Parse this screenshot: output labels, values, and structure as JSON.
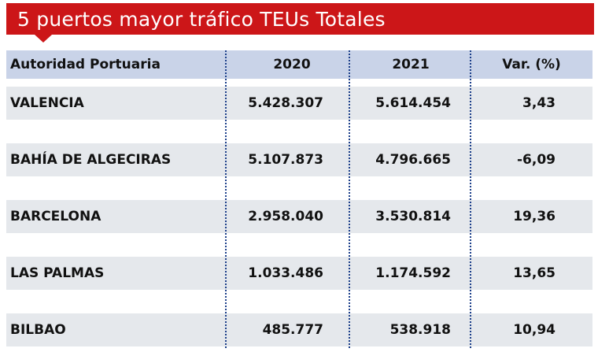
{
  "title": "5 puertos mayor tráfico TEUs Totales",
  "colors": {
    "title_bg": "#cc1618",
    "header_bg": "#c9d3e8",
    "row_bg": "#e5e8ec",
    "separator": "#1c3f8a"
  },
  "table": {
    "headers": {
      "name": "Autoridad Portuaria",
      "y2020": "2020",
      "y2021": "2021",
      "var": "Var. (%)"
    },
    "rows": [
      {
        "name": "VALENCIA",
        "y2020": "5.428.307",
        "y2021": "5.614.454",
        "var": "3,43"
      },
      {
        "name": "BAHÍA DE ALGECIRAS",
        "y2020": "5.107.873",
        "y2021": "4.796.665",
        "var": "-6,09"
      },
      {
        "name": "BARCELONA",
        "y2020": "2.958.040",
        "y2021": "3.530.814",
        "var": "19,36"
      },
      {
        "name": "LAS PALMAS",
        "y2020": "1.033.486",
        "y2021": "1.174.592",
        "var": "13,65"
      },
      {
        "name": "BILBAO",
        "y2020": "485.777",
        "y2021": "538.918",
        "var": "10,94"
      }
    ]
  }
}
